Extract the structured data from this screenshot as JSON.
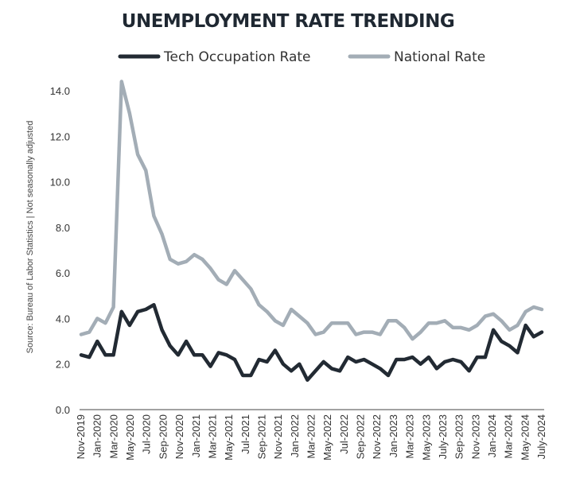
{
  "chart_data": {
    "type": "line",
    "title": "UNEMPLOYMENT RATE TRENDING",
    "source_note": "Source: Bureau of Labor Statistics | Not seasonally adjusted",
    "ylim": [
      0,
      15
    ],
    "yticks": [
      "0.0",
      "2.0",
      "4.0",
      "6.0",
      "8.0",
      "10.0",
      "12.0",
      "14.0"
    ],
    "grid": false,
    "legend_position": "top",
    "x_labels": [
      "Nov-2019",
      "Jan-2020",
      "Mar-2020",
      "May-2020",
      "Jul-2020",
      "Sep-2020",
      "Nov-2020",
      "Jan-2021",
      "Mar-2021",
      "May-2021",
      "Jul-2021",
      "Sep-2021",
      "Nov-2021",
      "Jan-2022",
      "Mar-2022",
      "May-2022",
      "Jul-2022",
      "Sep-2022",
      "Nov-2022",
      "Jan-2023",
      "Mar-2023",
      "May-2023",
      "July-2023",
      "Sep-2023",
      "Nov-2023",
      "Jan-2024",
      "Mar-2024",
      "May-2024",
      "July-2024"
    ],
    "series": [
      {
        "name": "Tech Occupation Rate",
        "color": "#222a33",
        "values": [
          2.4,
          2.3,
          3.0,
          2.4,
          2.4,
          4.3,
          3.7,
          4.3,
          4.4,
          4.6,
          3.5,
          2.8,
          2.4,
          3.0,
          2.4,
          2.4,
          1.9,
          2.5,
          2.4,
          2.2,
          1.5,
          1.5,
          2.2,
          2.1,
          2.6,
          2.0,
          1.7,
          2.0,
          1.3,
          1.7,
          2.1,
          1.8,
          1.7,
          2.3,
          2.1,
          2.2,
          2.0,
          1.8,
          1.5,
          2.2,
          2.2,
          2.3,
          2.0,
          2.3,
          1.8,
          2.1,
          2.2,
          2.1,
          1.7,
          2.3,
          2.3,
          3.5,
          3.0,
          2.8,
          2.5,
          3.7,
          3.2,
          3.4
        ]
      },
      {
        "name": "National Rate",
        "color": "#a3adb6",
        "values": [
          3.3,
          3.4,
          4.0,
          3.8,
          4.5,
          14.4,
          13.0,
          11.2,
          10.5,
          8.5,
          7.7,
          6.6,
          6.4,
          6.5,
          6.8,
          6.6,
          6.2,
          5.7,
          5.5,
          6.1,
          5.7,
          5.3,
          4.6,
          4.3,
          3.9,
          3.7,
          4.4,
          4.1,
          3.8,
          3.3,
          3.4,
          3.8,
          3.8,
          3.8,
          3.3,
          3.4,
          3.4,
          3.3,
          3.9,
          3.9,
          3.6,
          3.1,
          3.4,
          3.8,
          3.8,
          3.9,
          3.6,
          3.6,
          3.5,
          3.7,
          4.1,
          4.2,
          3.9,
          3.5,
          3.7,
          4.3,
          4.5,
          4.4
        ]
      }
    ]
  }
}
